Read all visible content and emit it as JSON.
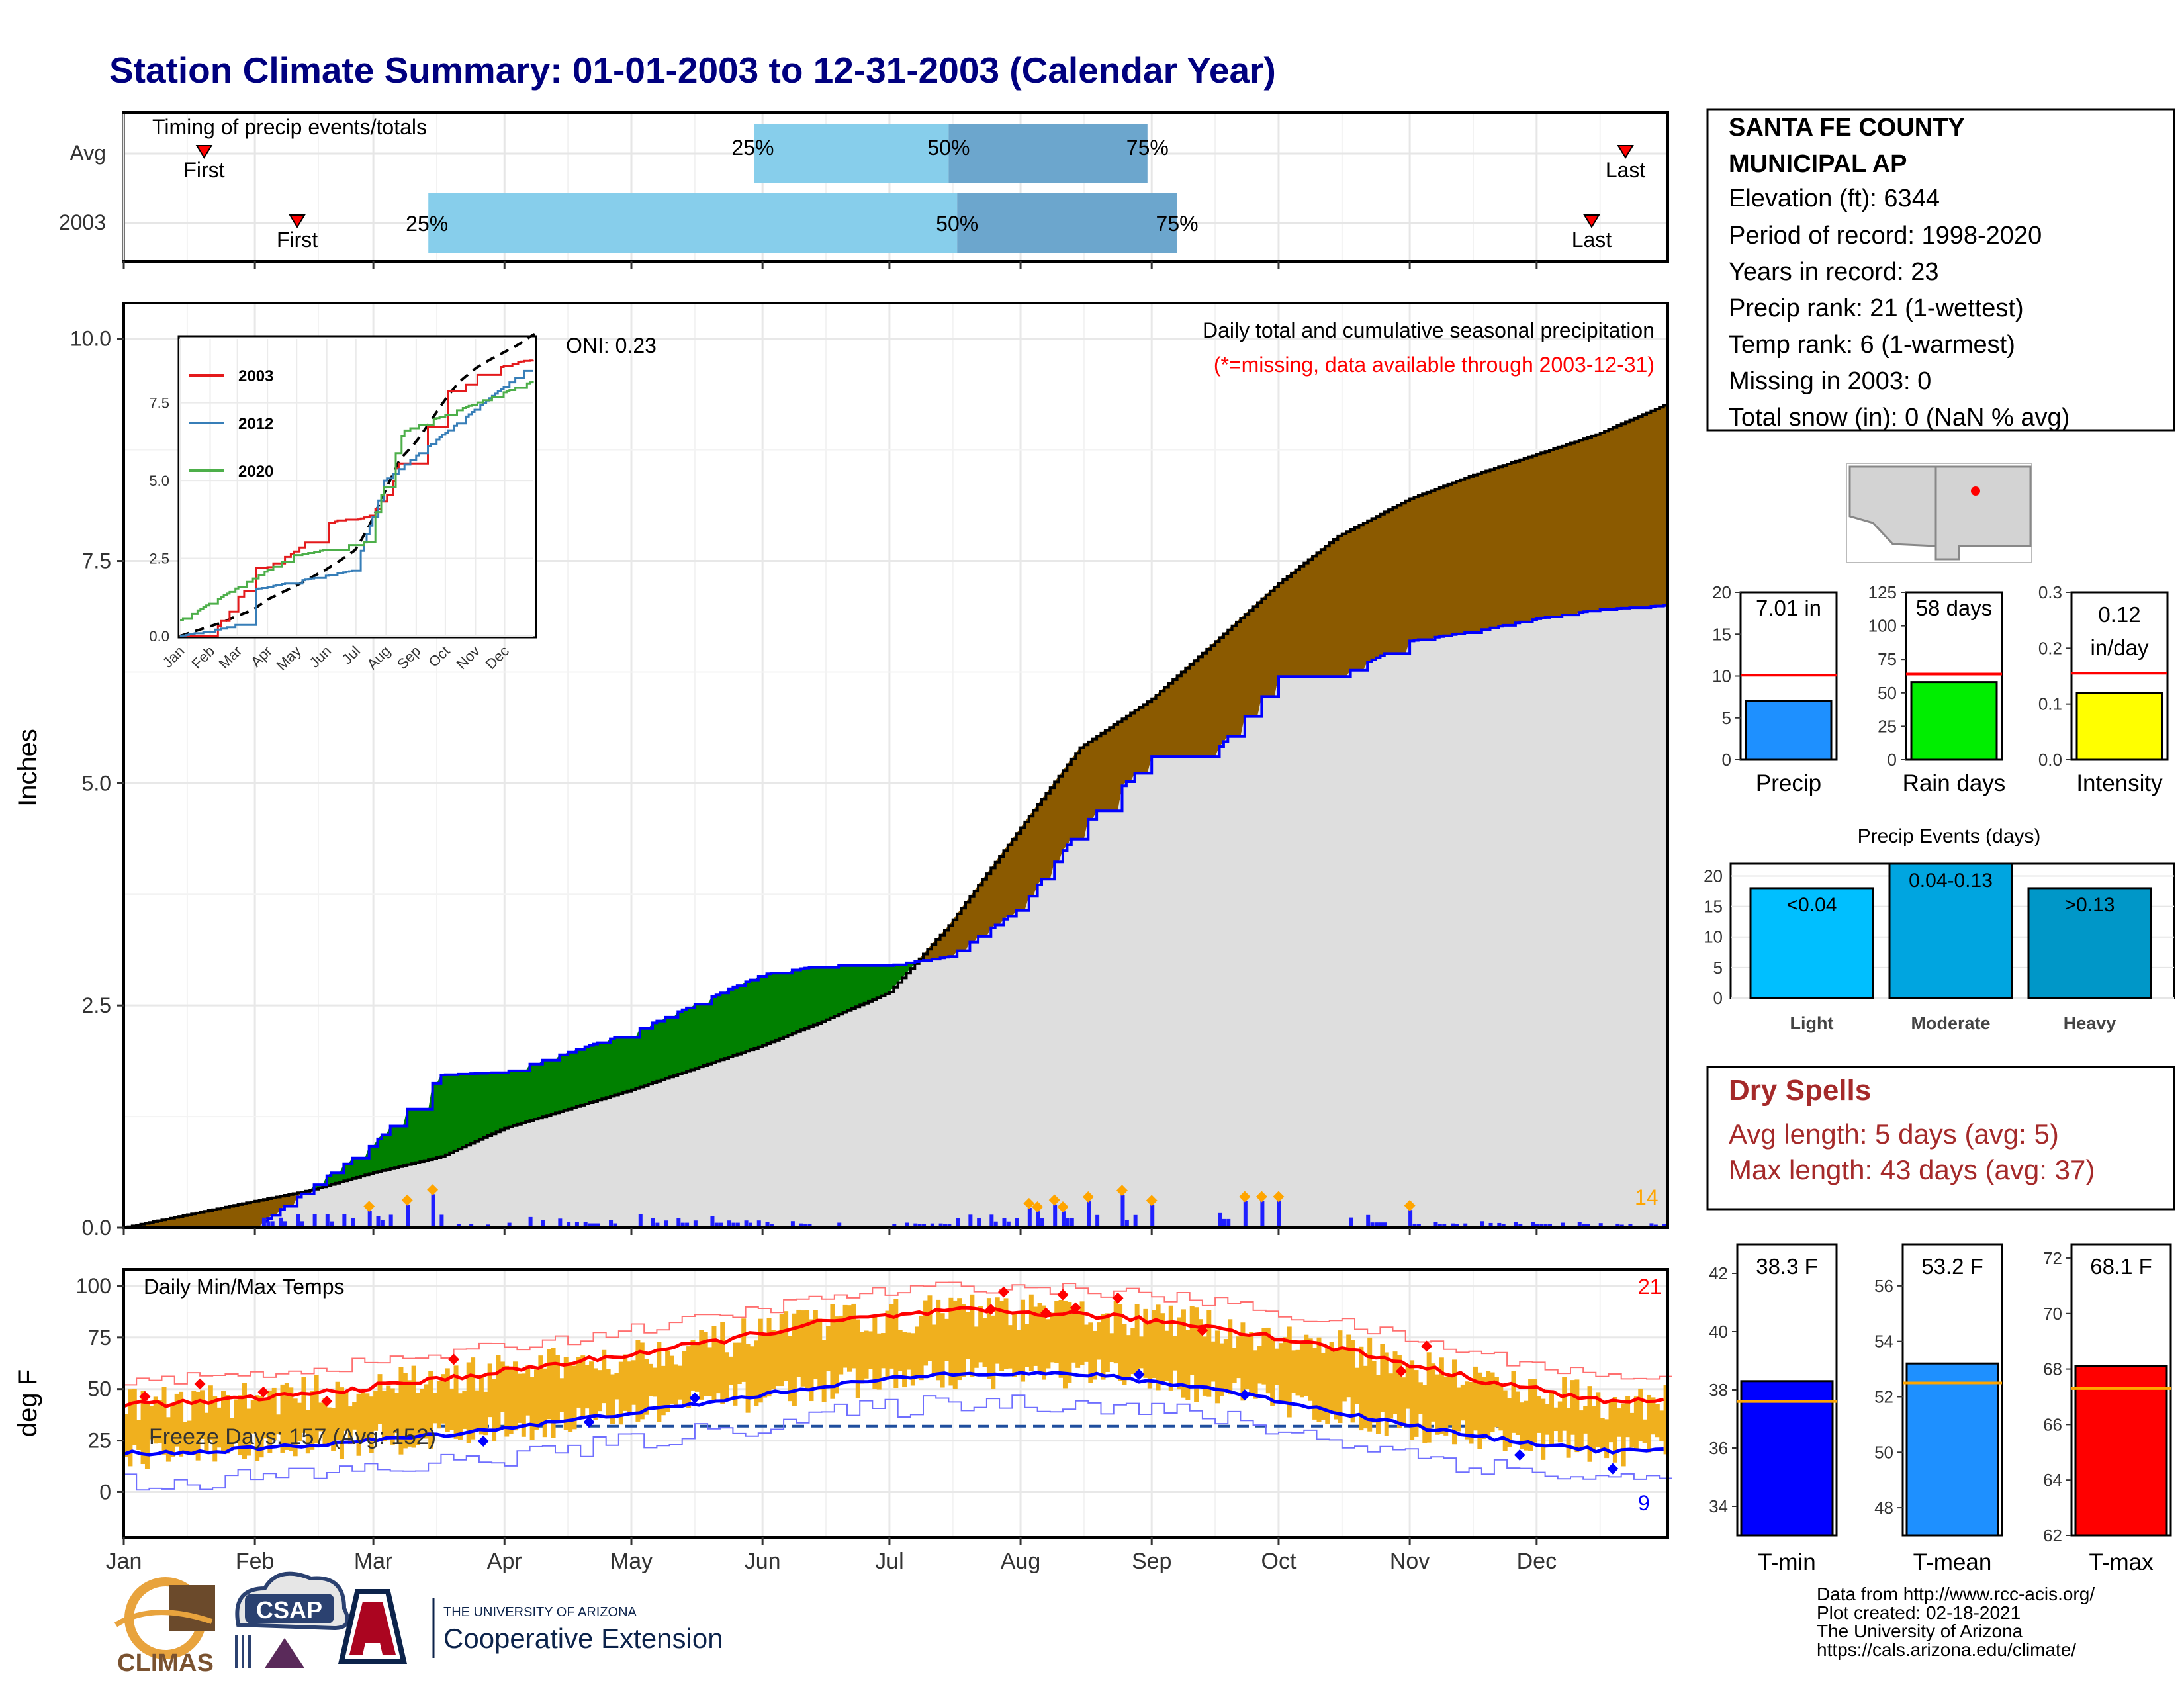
{
  "title": "Station Climate Summary: 01-01-2003 to 12-31-2003 (Calendar Year)",
  "colors": {
    "title": "#00007f",
    "precip_area": "#dedede",
    "precip_above": "#8b5a00",
    "precip_below": "#008000",
    "daily_bars": "#1f1fff",
    "event_markers": "#ffa500",
    "timing_light": "#87ceeb",
    "timing_dark": "#6ca6cd",
    "temp_range": "#f0b01e",
    "tmax_line": "#ff0000",
    "tmin_line": "#0000ff",
    "dry_spells_text": "#a52a2a"
  },
  "timing": {
    "label": "Timing of precip events/totals",
    "rows": [
      {
        "name": "Avg",
        "first": "Jan 20",
        "p25": "May 30",
        "p50": "Jul 15",
        "p75": "Aug 31",
        "last": "Dec 22",
        "first_label": "First",
        "last_label": "Last",
        "l25": "25%",
        "l50": "50%",
        "l75": "75%"
      },
      {
        "name": "2003",
        "first": "Feb 11",
        "p25": "Mar 14",
        "p50": "Jul 17",
        "p75": "Sep 7",
        "last": "Dec 14",
        "first_label": "First",
        "last_label": "Last",
        "l25": "25%",
        "l50": "50%",
        "l75": "75%"
      }
    ]
  },
  "precip_panel": {
    "ylabel": "Inches",
    "yticks": [
      "0.0",
      "2.5",
      "5.0",
      "7.5",
      "10.0"
    ],
    "ylim": [
      0,
      10
    ],
    "header": "Daily total and cumulative seasonal precipitation",
    "missing_note": "(*=missing, data available through 2003-12-31)",
    "oni": "ONI: 0.23",
    "event_count": "14",
    "xticks": [
      "Jan",
      "Feb",
      "Mar",
      "Apr",
      "May",
      "Jun",
      "Jul",
      "Aug",
      "Sep",
      "Oct",
      "Nov",
      "Dec"
    ]
  },
  "inset": {
    "yticks": [
      "0.0",
      "2.5",
      "5.0",
      "7.5"
    ],
    "xticks": [
      "Jan",
      "Feb",
      "Mar",
      "Apr",
      "May",
      "Jun",
      "Jul",
      "Aug",
      "Sep",
      "Oct",
      "Nov",
      "Dec"
    ],
    "legend": [
      {
        "name": "2003",
        "color": "#e41a1c"
      },
      {
        "name": "2012",
        "color": "#377eb8"
      },
      {
        "name": "2020",
        "color": "#4daf4a"
      }
    ]
  },
  "temp_panel": {
    "label": "Daily Min/Max Temps",
    "ylabel": "deg F",
    "yticks": [
      "0",
      "25",
      "50",
      "75",
      "100"
    ],
    "freeze_label": "Freeze Days: 157 (Avg: 152)",
    "hot_count": "21",
    "cold_count": "9"
  },
  "station": {
    "name": "SANTA FE COUNTY",
    "name2": "MUNICIPAL AP",
    "elevation": "Elevation (ft): 6344",
    "period": "Period of record: 1998-2020",
    "years": "Years in record: 23",
    "precip_rank": "Precip rank: 21 (1-wettest)",
    "temp_rank": "Temp rank: 6 (1-warmest)",
    "missing": "Missing in 2003: 0",
    "snow": "Total snow (in): 0 (NaN % avg)"
  },
  "summary_bars": [
    {
      "label": "Precip",
      "value_label": "7.01 in",
      "value": 7.01,
      "avg": 10.1,
      "ymax": 20,
      "yticks": [
        "0",
        "5",
        "10",
        "15",
        "20"
      ],
      "color": "#1e90ff"
    },
    {
      "label": "Rain days",
      "value_label": "58 days",
      "value": 58,
      "avg": 64,
      "ymax": 125,
      "yticks": [
        "0",
        "25",
        "50",
        "75",
        "100",
        "125"
      ],
      "color": "#00ee00"
    },
    {
      "label": "Intensity",
      "value_label": "0.12",
      "value_label2": "in/day",
      "value": 0.12,
      "avg": 0.155,
      "ymax": 0.3,
      "yticks": [
        "0.0",
        "0.1",
        "0.2",
        "0.3"
      ],
      "color": "#ffff00"
    }
  ],
  "events": {
    "title": "Precip Events (days)",
    "yticks": [
      "0",
      "5",
      "10",
      "15",
      "20"
    ],
    "bars": [
      {
        "category": "Light",
        "range": "<0.04",
        "value": 18,
        "color": "#00bfff"
      },
      {
        "category": "Moderate",
        "range": "0.04-0.13",
        "value": 22,
        "color": "#00a5e0"
      },
      {
        "category": "Heavy",
        "range": ">0.13",
        "value": 18,
        "color": "#0097c8"
      }
    ]
  },
  "dry_spells": {
    "title": "Dry Spells",
    "avg": "Avg length: 5 days (avg: 5)",
    "max": "Max length: 43 days (avg: 37)"
  },
  "temp_bars": [
    {
      "label": "T-min",
      "value_label": "38.3 F",
      "value": 38.3,
      "avg": 37.6,
      "ymin": 33,
      "ymax": 43,
      "yticks": [
        "34",
        "36",
        "38",
        "40",
        "42"
      ],
      "color": "#0000ff"
    },
    {
      "label": "T-mean",
      "value_label": "53.2 F",
      "value": 53.2,
      "avg": 52.5,
      "ymin": 47,
      "ymax": 57.5,
      "yticks": [
        "48",
        "50",
        "52",
        "54",
        "56"
      ],
      "color": "#1e90ff"
    },
    {
      "label": "T-max",
      "value_label": "68.1 F",
      "value": 68.1,
      "avg": 67.3,
      "ymin": 62,
      "ymax": 72.5,
      "yticks": [
        "62",
        "64",
        "66",
        "68",
        "70",
        "72"
      ],
      "color": "#ff0000"
    }
  ],
  "footer": {
    "line1": "Data from http://www.rcc-acis.org/",
    "line2": "Plot created: 02-18-2021",
    "line3": "The University of Arizona",
    "line4": "https://cals.arizona.edu/climate/"
  },
  "logos": {
    "climas": "CLIMAS",
    "csap": "CSAP",
    "ua_small": "THE UNIVERSITY OF ARIZONA",
    "ua_big": "Cooperative Extension"
  },
  "chart_data": [
    {
      "type": "area",
      "title": "Daily total and cumulative seasonal precipitation",
      "ylabel": "Inches",
      "ylim": [
        0,
        10
      ],
      "x": [
        "Jan 1",
        "Feb 1",
        "Feb 14",
        "Mar 1",
        "Mar 17",
        "Apr 1",
        "May 1",
        "Jun 1",
        "Jun 15",
        "Jul 1",
        "Jul 15",
        "Aug 1",
        "Aug 15",
        "Sep 1",
        "Sep 15",
        "Oct 1",
        "Oct 15",
        "Nov 1",
        "Nov 15",
        "Dec 1",
        "Dec 15",
        "Dec 31"
      ],
      "series": [
        {
          "name": "Average cumulative",
          "values": [
            0,
            0.3,
            0.42,
            0.62,
            0.8,
            1.12,
            1.55,
            2.05,
            2.32,
            2.65,
            3.4,
            4.5,
            5.4,
            5.95,
            6.55,
            7.25,
            7.78,
            8.2,
            8.45,
            8.7,
            8.92,
            9.25
          ]
        },
        {
          "name": "2003 cumulative",
          "values": [
            0,
            0.0,
            0.45,
            0.95,
            1.72,
            1.75,
            2.2,
            2.85,
            2.95,
            2.95,
            3.05,
            3.6,
            4.5,
            5.3,
            5.3,
            6.2,
            6.2,
            6.6,
            6.7,
            6.85,
            6.95,
            7.0
          ]
        }
      ]
    },
    {
      "type": "bar",
      "title": "Daily Min/Max Temps",
      "ylabel": "deg F",
      "categories": [
        "Jan",
        "Feb",
        "Mar",
        "Apr",
        "May",
        "Jun",
        "Jul",
        "Aug",
        "Sep",
        "Oct",
        "Nov",
        "Dec"
      ],
      "series": [
        {
          "name": "Avg Tmax",
          "values": [
            43,
            48,
            55,
            63,
            72,
            83,
            88,
            86,
            80,
            69,
            55,
            44
          ]
        },
        {
          "name": "Avg Tmin",
          "values": [
            19,
            23,
            28,
            35,
            43,
            52,
            58,
            57,
            50,
            38,
            27,
            20
          ]
        }
      ]
    },
    {
      "type": "bar",
      "title": "Precip Events (days)",
      "categories": [
        "Light",
        "Moderate",
        "Heavy"
      ],
      "values": [
        18,
        22,
        18
      ]
    }
  ]
}
